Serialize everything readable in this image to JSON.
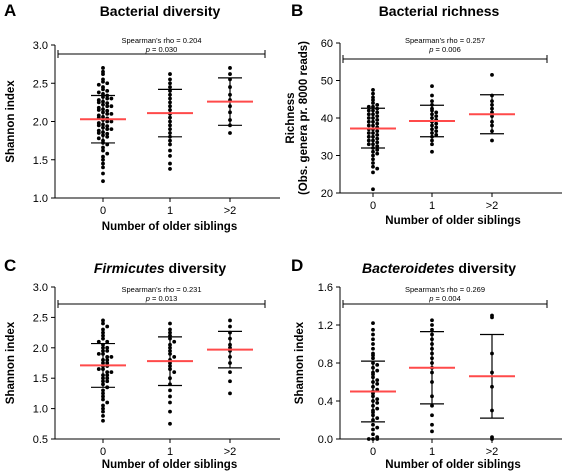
{
  "chart_data": [
    {
      "type": "scatter",
      "panel_letter": "A",
      "title": "Bacterial diversity",
      "title_italic": "",
      "title_rest": "",
      "xlabel": "Number of older siblings",
      "ylabel": "Shannon index",
      "ylabel2": "",
      "categories": [
        "0",
        "1",
        ">2"
      ],
      "ylim": [
        1.0,
        3.0
      ],
      "yticks": [
        "1.0",
        "1.5",
        "2.0",
        "2.5",
        "3.0"
      ],
      "stat_line1": "Spearman's rho = 0.204",
      "stat_p_symbol": "p",
      "stat_p_value": " = 0.030",
      "groups": [
        {
          "category": "0",
          "mean": 2.03,
          "sd_low": 1.72,
          "sd_high": 2.34,
          "points": [
            2.7,
            2.65,
            2.62,
            2.55,
            2.52,
            2.5,
            2.48,
            2.45,
            2.42,
            2.4,
            2.38,
            2.36,
            2.34,
            2.32,
            2.3,
            2.28,
            2.26,
            2.24,
            2.22,
            2.2,
            2.18,
            2.16,
            2.14,
            2.12,
            2.1,
            2.08,
            2.06,
            2.04,
            2.02,
            2.0,
            1.98,
            1.96,
            1.94,
            1.92,
            1.9,
            1.88,
            1.86,
            1.84,
            1.82,
            1.8,
            1.78,
            1.75,
            1.72,
            1.7,
            1.66,
            1.62,
            1.58,
            1.54,
            1.5,
            1.45,
            1.4,
            1.32,
            1.22,
            2.2,
            2.1,
            2.05,
            2.0,
            1.95,
            1.9,
            1.85,
            2.15,
            2.25,
            2.3
          ]
        },
        {
          "category": "1",
          "mean": 2.11,
          "sd_low": 1.8,
          "sd_high": 2.42,
          "points": [
            2.62,
            2.55,
            2.5,
            2.45,
            2.4,
            2.35,
            2.3,
            2.25,
            2.2,
            2.15,
            2.1,
            2.05,
            2.0,
            1.95,
            1.9,
            1.85,
            1.8,
            1.75,
            1.7,
            1.62,
            1.55,
            1.45,
            1.38
          ]
        },
        {
          "category": ">2",
          "mean": 2.26,
          "sd_low": 1.95,
          "sd_high": 2.57,
          "points": [
            2.7,
            2.62,
            2.55,
            2.45,
            2.35,
            2.28,
            2.2,
            2.12,
            2.02,
            1.95,
            1.85
          ]
        }
      ]
    },
    {
      "type": "scatter",
      "panel_letter": "B",
      "title": "Bacterial richness",
      "title_italic": "",
      "title_rest": "",
      "xlabel": "Number of older siblings",
      "ylabel": "Richness",
      "ylabel2": "(Obs. genera pr. 8000 reads)",
      "categories": [
        "0",
        "1",
        ">2"
      ],
      "ylim": [
        20,
        60
      ],
      "yticks": [
        "20",
        "30",
        "40",
        "50",
        "60"
      ],
      "stat_line1": "Spearman's rho = 0.257",
      "stat_p_symbol": "p",
      "stat_p_value": " = 0.006",
      "groups": [
        {
          "category": "0",
          "mean": 37.2,
          "sd_low": 32.0,
          "sd_high": 42.6,
          "points": [
            47.5,
            46.5,
            45.5,
            44.8,
            44.0,
            43.5,
            43.0,
            42.5,
            42.0,
            41.5,
            41.0,
            40.5,
            40.0,
            39.5,
            39.0,
            38.5,
            38.0,
            37.5,
            37.0,
            36.5,
            36.0,
            35.5,
            35.0,
            34.5,
            34.0,
            33.5,
            33.0,
            32.5,
            32.0,
            31.5,
            31.0,
            30.5,
            30.0,
            29.0,
            28.0,
            27.0,
            26.5,
            25.5,
            21.0,
            40.0,
            38.0,
            37.0,
            36.0,
            35.0,
            39.0,
            41.0,
            34.0,
            33.0,
            43.0,
            42.0
          ]
        },
        {
          "category": "1",
          "mean": 39.2,
          "sd_low": 35.0,
          "sd_high": 43.4,
          "points": [
            48.5,
            46.0,
            44.5,
            43.5,
            42.5,
            42.0,
            41.5,
            41.0,
            40.5,
            40.0,
            39.5,
            39.0,
            38.5,
            38.0,
            37.5,
            37.0,
            36.5,
            36.0,
            35.5,
            35.0,
            34.0,
            33.0,
            31.0
          ]
        },
        {
          "category": ">2",
          "mean": 41.0,
          "sd_low": 35.8,
          "sd_high": 46.2,
          "points": [
            51.5,
            46.0,
            44.5,
            43.5,
            42.5,
            41.5,
            40.5,
            39.0,
            38.0,
            36.5,
            34.0
          ]
        }
      ]
    },
    {
      "type": "scatter",
      "panel_letter": "C",
      "title": "",
      "title_italic": "Firmicutes",
      "title_rest": " diversity",
      "xlabel": "Number of older siblings",
      "ylabel": "Shannon index",
      "ylabel2": "",
      "categories": [
        "0",
        "1",
        ">2"
      ],
      "ylim": [
        0.5,
        3.0
      ],
      "yticks": [
        "0.5",
        "1.0",
        "1.5",
        "2.0",
        "2.5",
        "3.0"
      ],
      "stat_line1": "Spearman's rho = 0.231",
      "stat_p_symbol": "p",
      "stat_p_value": " = 0.013",
      "groups": [
        {
          "category": "0",
          "mean": 1.71,
          "sd_low": 1.35,
          "sd_high": 2.07,
          "points": [
            2.45,
            2.4,
            2.35,
            2.3,
            2.25,
            2.2,
            2.15,
            2.1,
            2.05,
            2.0,
            1.95,
            1.9,
            1.85,
            1.8,
            1.75,
            1.7,
            1.65,
            1.6,
            1.55,
            1.5,
            1.45,
            1.4,
            1.35,
            1.3,
            1.25,
            1.2,
            1.15,
            1.1,
            1.05,
            1.0,
            0.95,
            0.88,
            0.8,
            2.0,
            1.9,
            1.8,
            1.75,
            1.7,
            1.65,
            1.6,
            1.55,
            1.85,
            1.95,
            2.1,
            1.5,
            1.45
          ]
        },
        {
          "category": "1",
          "mean": 1.78,
          "sd_low": 1.38,
          "sd_high": 2.18,
          "points": [
            2.4,
            2.3,
            2.25,
            2.2,
            2.15,
            2.1,
            2.05,
            2.0,
            1.95,
            1.9,
            1.85,
            1.8,
            1.75,
            1.7,
            1.65,
            1.6,
            1.5,
            1.4,
            1.3,
            1.2,
            1.1,
            0.95,
            0.75
          ]
        },
        {
          "category": ">2",
          "mean": 1.97,
          "sd_low": 1.67,
          "sd_high": 2.27,
          "points": [
            2.45,
            2.35,
            2.25,
            2.15,
            2.05,
            2.0,
            1.95,
            1.85,
            1.75,
            1.6,
            1.45,
            1.25
          ]
        }
      ]
    },
    {
      "type": "scatter",
      "panel_letter": "D",
      "title": "",
      "title_italic": "Bacteroidetes",
      "title_rest": " diversity",
      "xlabel": "Number of older siblings",
      "ylabel": "Shannon index",
      "ylabel2": "",
      "categories": [
        "0",
        "1",
        ">2"
      ],
      "ylim": [
        0.0,
        1.6
      ],
      "yticks": [
        "0.0",
        "0.4",
        "0.8",
        "1.2",
        "1.6"
      ],
      "stat_line1": "Spearman's rho = 0.269",
      "stat_p_symbol": "p",
      "stat_p_value": " = 0.004",
      "groups": [
        {
          "category": "0",
          "mean": 0.5,
          "sd_low": 0.18,
          "sd_high": 0.82,
          "points": [
            1.22,
            1.15,
            1.1,
            1.05,
            1.0,
            0.95,
            0.9,
            0.85,
            0.8,
            0.75,
            0.7,
            0.65,
            0.6,
            0.55,
            0.5,
            0.45,
            0.4,
            0.35,
            0.3,
            0.25,
            0.2,
            0.15,
            0.1,
            0.05,
            0.02,
            0.0,
            0.0,
            0.0,
            0.72,
            0.62,
            0.52,
            0.42,
            0.32,
            0.22,
            0.12,
            0.58,
            0.48,
            0.38,
            0.28,
            0.68,
            0.78,
            0.88
          ]
        },
        {
          "category": "1",
          "mean": 0.75,
          "sd_low": 0.37,
          "sd_high": 1.13,
          "points": [
            1.25,
            1.2,
            1.15,
            1.1,
            1.05,
            1.0,
            0.95,
            0.9,
            0.85,
            0.8,
            0.75,
            0.7,
            0.6,
            0.45,
            0.35,
            0.25,
            0.15,
            0.08
          ]
        },
        {
          "category": ">2",
          "mean": 0.66,
          "sd_low": 0.22,
          "sd_high": 1.1,
          "points": [
            1.3,
            1.28,
            0.9,
            0.7,
            0.55,
            0.3,
            0.02,
            0.0
          ]
        }
      ]
    }
  ],
  "colors": {
    "mean_line": "#ff4a4a",
    "points": "#000000",
    "axis": "#000000"
  }
}
